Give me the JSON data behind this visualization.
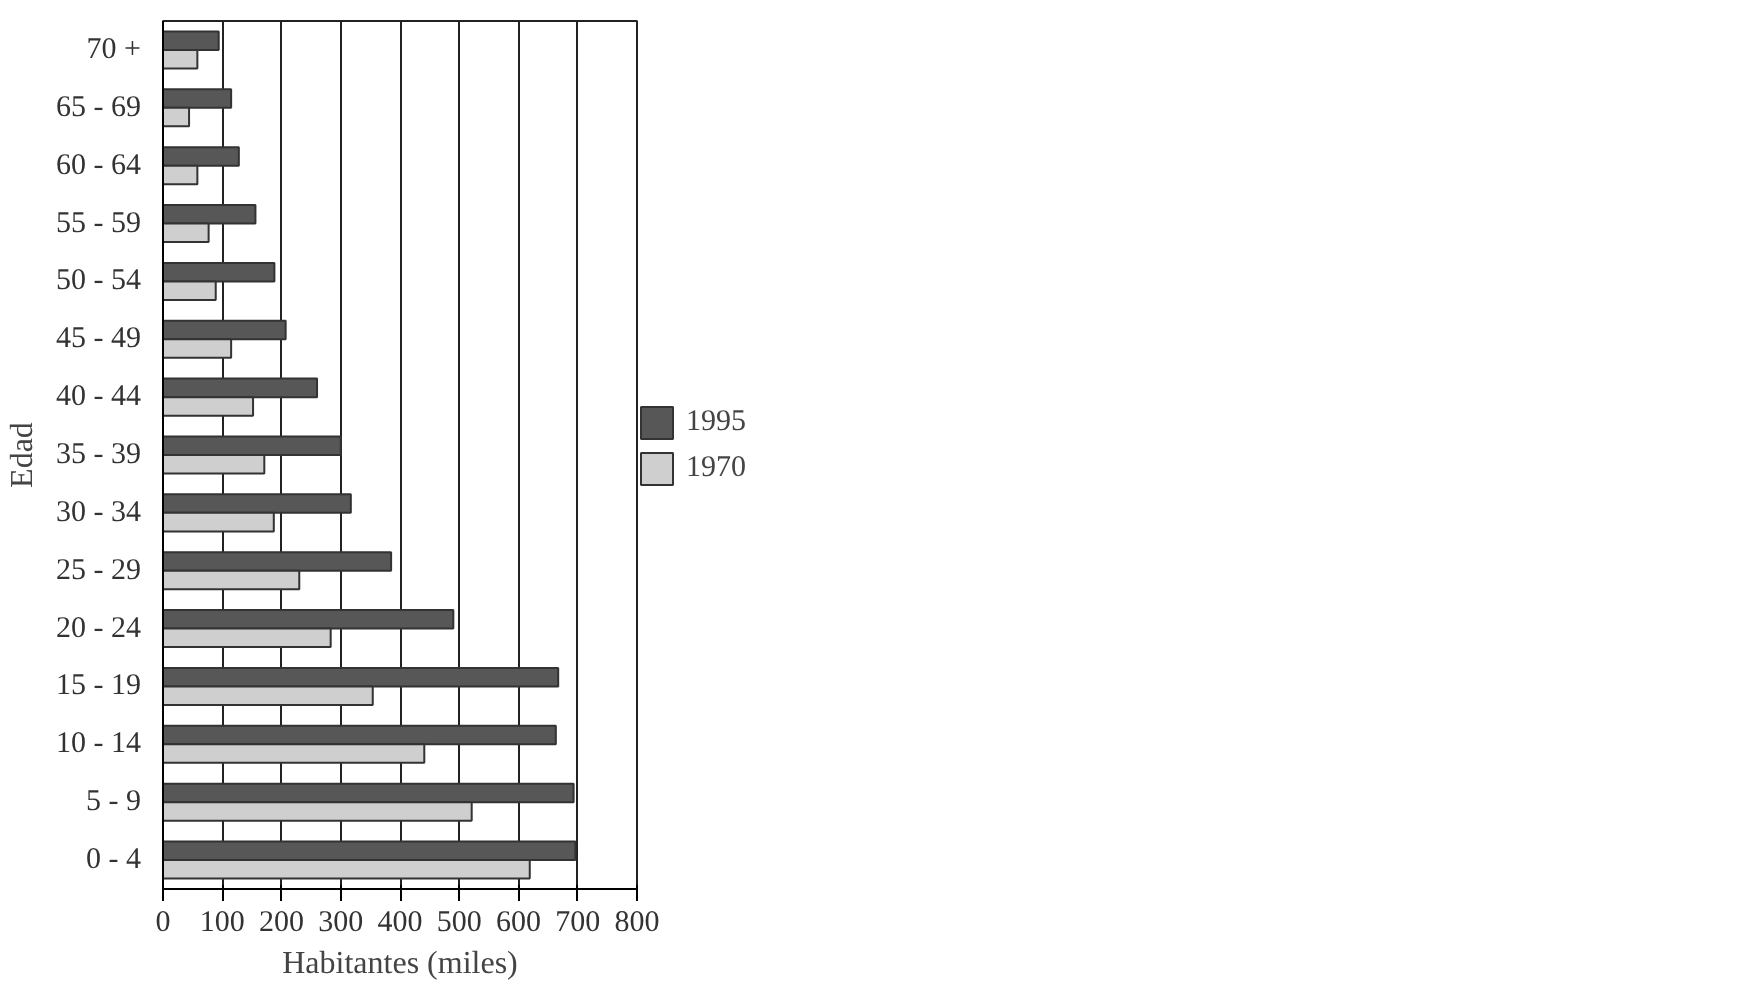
{
  "chart_data": {
    "type": "bar",
    "orientation": "horizontal",
    "xlabel": "Habitantes (miles)",
    "ylabel": "Edad",
    "categories": [
      "70 +",
      "65 - 69",
      "60 - 64",
      "55 - 59",
      "50 - 54",
      "45 - 49",
      "40 - 44",
      "35 - 39",
      "30 - 34",
      "25 - 29",
      "20 - 24",
      "15 - 19",
      "10 - 14",
      "5 - 9",
      "0 - 4"
    ],
    "series": [
      {
        "name": "1995",
        "color": "#575757",
        "values": [
          94,
          115,
          128,
          156,
          188,
          207,
          260,
          300,
          317,
          385,
          490,
          667,
          663,
          693,
          696
        ]
      },
      {
        "name": "1970",
        "color": "#cfcfcf",
        "values": [
          58,
          44,
          58,
          77,
          89,
          115,
          152,
          171,
          187,
          230,
          283,
          354,
          441,
          521,
          619
        ]
      }
    ],
    "xlim": [
      0,
      800
    ],
    "xticks": [
      0,
      100,
      200,
      300,
      400,
      500,
      600,
      700,
      800
    ],
    "grid": "x",
    "legend": "right"
  }
}
